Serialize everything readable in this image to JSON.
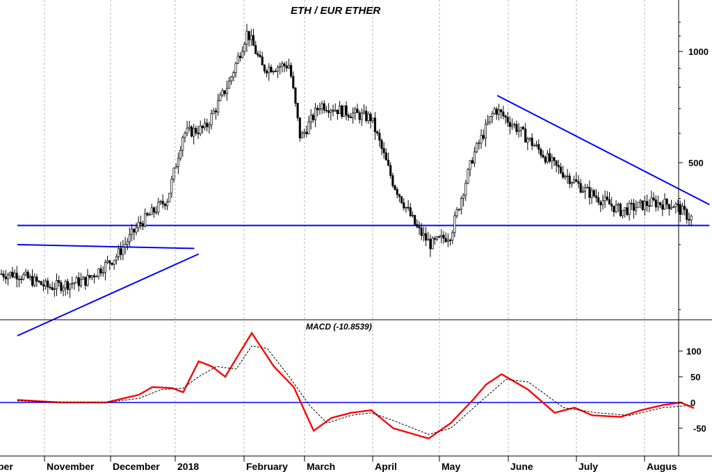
{
  "chart_data": [
    {
      "type": "candlestick",
      "title": "ETH / EUR ETHER",
      "yscale": "log",
      "ylim": [
        120,
        1300
      ],
      "yticks": [
        500,
        1000
      ],
      "xticks": [
        "ber",
        "November",
        "December",
        "2018",
        "February",
        "March",
        "April",
        "May",
        "June",
        "July",
        "Augus"
      ],
      "grid": "vertical dashed",
      "colors": {
        "price": "#000000",
        "trendlines": "#0000ff"
      },
      "approx_closes": [
        {
          "x": "2017-10-01",
          "y": 250
        },
        {
          "x": "2017-10-15",
          "y": 230
        },
        {
          "x": "2017-11-01",
          "y": 240
        },
        {
          "x": "2017-11-15",
          "y": 280
        },
        {
          "x": "2017-11-25",
          "y": 340
        },
        {
          "x": "2017-12-08",
          "y": 400
        },
        {
          "x": "2017-12-15",
          "y": 600
        },
        {
          "x": "2017-12-25",
          "y": 620
        },
        {
          "x": "2018-01-05",
          "y": 830
        },
        {
          "x": "2018-01-13",
          "y": 1130
        },
        {
          "x": "2018-01-20",
          "y": 900
        },
        {
          "x": "2018-02-01",
          "y": 920
        },
        {
          "x": "2018-02-06",
          "y": 580
        },
        {
          "x": "2018-02-15",
          "y": 720
        },
        {
          "x": "2018-02-25",
          "y": 690
        },
        {
          "x": "2018-03-10",
          "y": 660
        },
        {
          "x": "2018-03-20",
          "y": 440
        },
        {
          "x": "2018-03-31",
          "y": 330
        },
        {
          "x": "2018-04-06",
          "y": 300
        },
        {
          "x": "2018-04-15",
          "y": 320
        },
        {
          "x": "2018-04-25",
          "y": 520
        },
        {
          "x": "2018-05-05",
          "y": 700
        },
        {
          "x": "2018-05-15",
          "y": 620
        },
        {
          "x": "2018-06-01",
          "y": 490
        },
        {
          "x": "2018-06-15",
          "y": 420
        },
        {
          "x": "2018-07-01",
          "y": 370
        },
        {
          "x": "2018-07-15",
          "y": 390
        },
        {
          "x": "2018-07-25",
          "y": 385
        },
        {
          "x": "2018-08-01",
          "y": 355
        }
      ],
      "trendlines": [
        {
          "from": {
            "x": "2017-10-01",
            "y": 300
          },
          "to": {
            "x": "2017-12-20",
            "y": 293
          }
        },
        {
          "from": {
            "x": "2017-10-01",
            "y": 170
          },
          "to": {
            "x": "2017-12-22",
            "y": 283
          }
        },
        {
          "from": {
            "x": "2017-10-01",
            "y": 338
          },
          "to": {
            "x": "2018-08-10",
            "y": 338
          }
        },
        {
          "from": {
            "x": "2018-05-06",
            "y": 760
          },
          "to": {
            "x": "2018-08-10",
            "y": 385
          }
        }
      ]
    },
    {
      "type": "line",
      "title": "MACD (-10.8539)",
      "ylim": [
        -85,
        145
      ],
      "yticks": [
        -50,
        0,
        50,
        100
      ],
      "zero_line": true,
      "colors": {
        "macd": "#ff0000",
        "signal": "#000000",
        "zero": "#0000ff"
      },
      "series": [
        {
          "style": "solid",
          "points": [
            {
              "x": "2017-10-01",
              "y": 5
            },
            {
              "x": "2017-10-20",
              "y": 0
            },
            {
              "x": "2017-11-10",
              "y": 0
            },
            {
              "x": "2017-11-25",
              "y": 15
            },
            {
              "x": "2017-12-01",
              "y": 30
            },
            {
              "x": "2017-12-10",
              "y": 28
            },
            {
              "x": "2017-12-15",
              "y": 20
            },
            {
              "x": "2017-12-22",
              "y": 80
            },
            {
              "x": "2017-12-28",
              "y": 70
            },
            {
              "x": "2018-01-03",
              "y": 50
            },
            {
              "x": "2018-01-10",
              "y": 100
            },
            {
              "x": "2018-01-15",
              "y": 135
            },
            {
              "x": "2018-01-25",
              "y": 70
            },
            {
              "x": "2018-02-03",
              "y": 30
            },
            {
              "x": "2018-02-12",
              "y": -55
            },
            {
              "x": "2018-02-20",
              "y": -30
            },
            {
              "x": "2018-03-01",
              "y": -20
            },
            {
              "x": "2018-03-10",
              "y": -15
            },
            {
              "x": "2018-03-20",
              "y": -50
            },
            {
              "x": "2018-04-01",
              "y": -65
            },
            {
              "x": "2018-04-05",
              "y": -70
            },
            {
              "x": "2018-04-15",
              "y": -40
            },
            {
              "x": "2018-04-25",
              "y": 5
            },
            {
              "x": "2018-05-01",
              "y": 35
            },
            {
              "x": "2018-05-08",
              "y": 55
            },
            {
              "x": "2018-05-20",
              "y": 25
            },
            {
              "x": "2018-06-01",
              "y": -20
            },
            {
              "x": "2018-06-10",
              "y": -10
            },
            {
              "x": "2018-06-18",
              "y": -25
            },
            {
              "x": "2018-07-01",
              "y": -28
            },
            {
              "x": "2018-07-10",
              "y": -15
            },
            {
              "x": "2018-07-20",
              "y": -5
            },
            {
              "x": "2018-07-28",
              "y": 0
            },
            {
              "x": "2018-08-03",
              "y": -11
            }
          ]
        },
        {
          "style": "dashed",
          "points": [
            {
              "x": "2017-10-01",
              "y": 3
            },
            {
              "x": "2017-10-20",
              "y": 1
            },
            {
              "x": "2017-11-10",
              "y": 0
            },
            {
              "x": "2017-11-25",
              "y": 8
            },
            {
              "x": "2017-12-05",
              "y": 25
            },
            {
              "x": "2017-12-15",
              "y": 28
            },
            {
              "x": "2017-12-22",
              "y": 50
            },
            {
              "x": "2017-12-30",
              "y": 70
            },
            {
              "x": "2018-01-08",
              "y": 65
            },
            {
              "x": "2018-01-15",
              "y": 110
            },
            {
              "x": "2018-01-22",
              "y": 105
            },
            {
              "x": "2018-02-01",
              "y": 50
            },
            {
              "x": "2018-02-10",
              "y": -5
            },
            {
              "x": "2018-02-18",
              "y": -40
            },
            {
              "x": "2018-03-01",
              "y": -25
            },
            {
              "x": "2018-03-10",
              "y": -20
            },
            {
              "x": "2018-03-20",
              "y": -35
            },
            {
              "x": "2018-04-05",
              "y": -62
            },
            {
              "x": "2018-04-15",
              "y": -50
            },
            {
              "x": "2018-04-28",
              "y": 0
            },
            {
              "x": "2018-05-10",
              "y": 45
            },
            {
              "x": "2018-05-20",
              "y": 40
            },
            {
              "x": "2018-06-05",
              "y": -10
            },
            {
              "x": "2018-06-20",
              "y": -20
            },
            {
              "x": "2018-07-05",
              "y": -25
            },
            {
              "x": "2018-07-20",
              "y": -10
            },
            {
              "x": "2018-08-03",
              "y": -5
            }
          ]
        }
      ]
    }
  ]
}
